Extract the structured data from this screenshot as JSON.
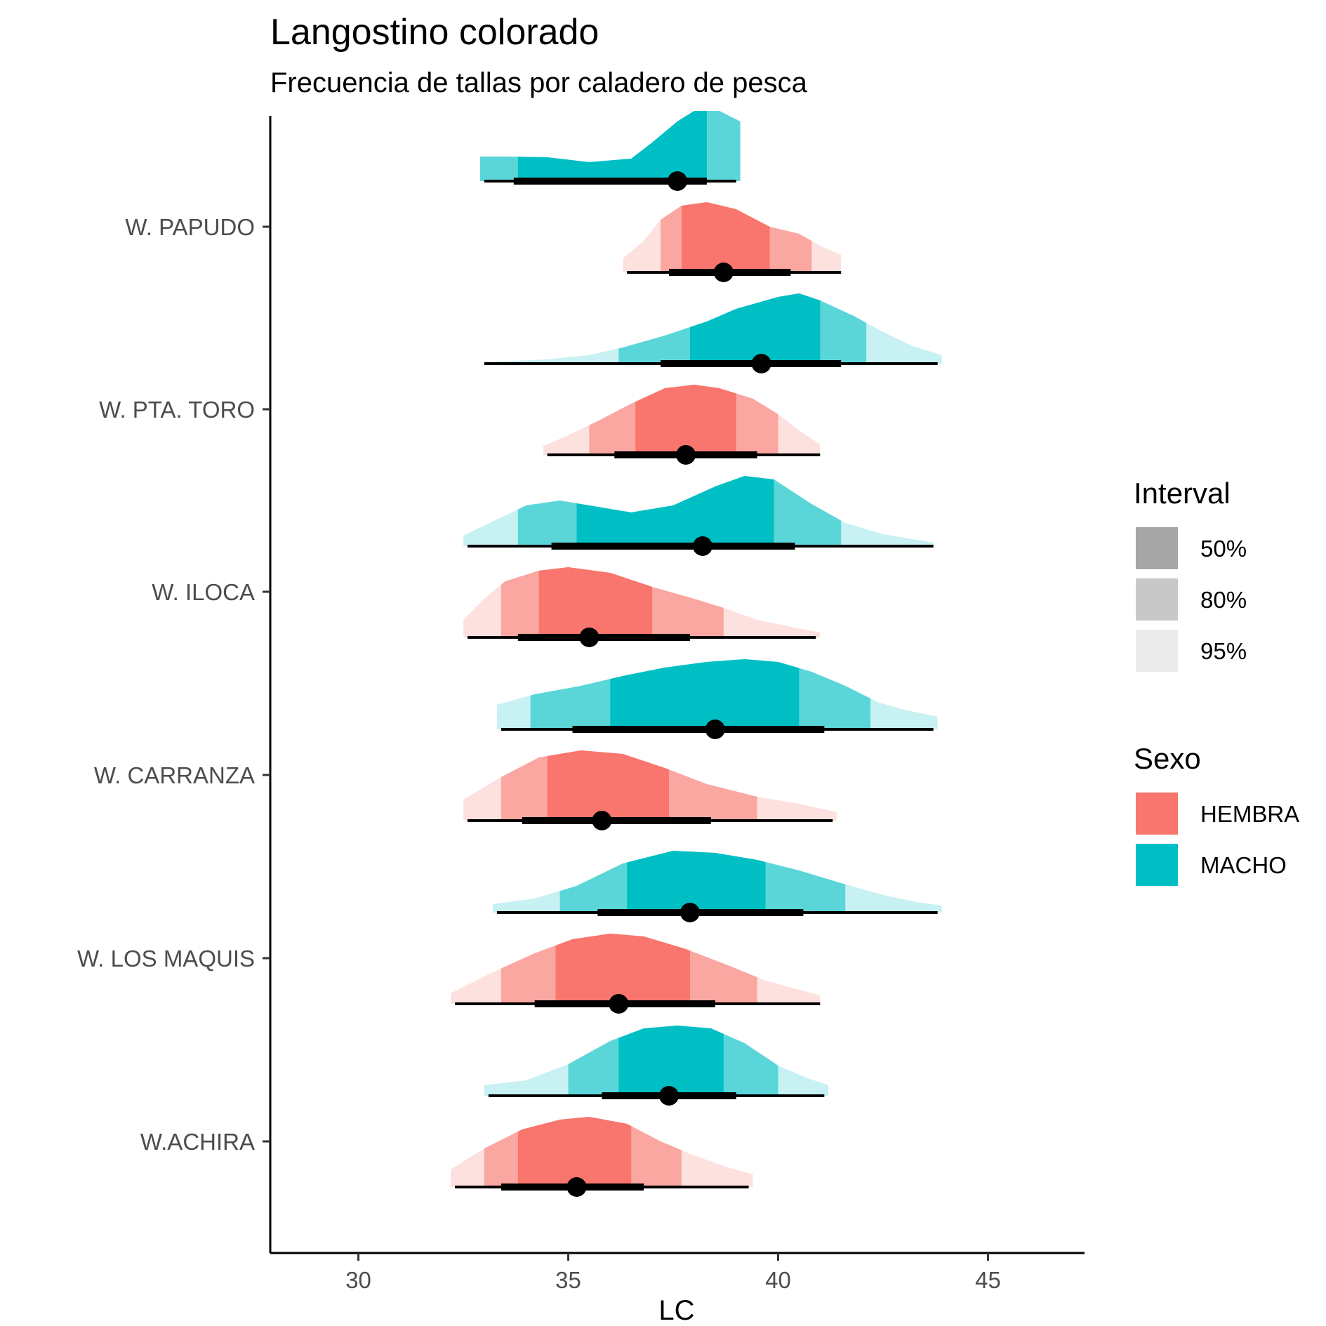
{
  "colors": {
    "HEMBRA": "#F8766D",
    "MACHO": "#00BFC4",
    "interval_50": "#A6A6A6",
    "interval_80": "#C8C8C8",
    "interval_95": "#EBEBEB"
  },
  "chart_data": {
    "type": "halfeye",
    "title": "Langostino colorado",
    "subtitle": "Frecuencia de tallas por caladero de pesca",
    "xlabel": "LC",
    "ylabel": "",
    "xlim": [
      27.9,
      47.3
    ],
    "xticks": [
      30,
      35,
      40,
      45
    ],
    "categories": [
      "W. PAPUDO",
      "W. PTA. TORO",
      "W. ILOCA",
      "W. CARRANZA",
      "W. LOS MAQUIS",
      "W.ACHIRA"
    ],
    "legend": {
      "interval_title": "Interval",
      "interval_levels": [
        "50%",
        "80%",
        "95%"
      ],
      "sexo_title": "Sexo",
      "sexo_levels": [
        "HEMBRA",
        "MACHO"
      ]
    },
    "series": [
      {
        "caladero": "W. PAPUDO",
        "sexo": "MACHO",
        "density": [
          [
            32.9,
            0.35
          ],
          [
            33.5,
            0.35
          ],
          [
            34.5,
            0.34
          ],
          [
            35.5,
            0.27
          ],
          [
            36.5,
            0.32
          ],
          [
            37.0,
            0.55
          ],
          [
            37.6,
            0.85
          ],
          [
            38.0,
            1.0
          ],
          [
            38.6,
            1.0
          ],
          [
            39.1,
            0.85
          ]
        ],
        "int95": [
          32.9,
          39.1
        ],
        "int80": [
          32.9,
          39.1
        ],
        "int50": [
          33.8,
          38.3
        ],
        "line95": [
          33.0,
          39.0
        ],
        "line66": [
          33.7,
          38.3
        ],
        "median": 37.6
      },
      {
        "caladero": "W. PAPUDO",
        "sexo": "HEMBRA",
        "density": [
          [
            36.3,
            0.2
          ],
          [
            36.8,
            0.45
          ],
          [
            37.2,
            0.75
          ],
          [
            37.7,
            0.95
          ],
          [
            38.3,
            1.0
          ],
          [
            39.0,
            0.9
          ],
          [
            39.8,
            0.65
          ],
          [
            40.5,
            0.55
          ],
          [
            41.0,
            0.38
          ],
          [
            41.5,
            0.25
          ]
        ],
        "int95": [
          36.3,
          41.5
        ],
        "int80": [
          37.2,
          40.8
        ],
        "int50": [
          37.7,
          39.8
        ],
        "line95": [
          36.4,
          41.5
        ],
        "line66": [
          37.4,
          40.3
        ],
        "median": 38.7
      },
      {
        "caladero": "W. PTA. TORO",
        "sexo": "MACHO",
        "density": [
          [
            33.0,
            0.02
          ],
          [
            34.5,
            0.06
          ],
          [
            35.5,
            0.12
          ],
          [
            36.3,
            0.23
          ],
          [
            37.3,
            0.4
          ],
          [
            38.3,
            0.6
          ],
          [
            39.0,
            0.78
          ],
          [
            40.0,
            0.95
          ],
          [
            40.5,
            1.0
          ],
          [
            41.0,
            0.9
          ],
          [
            41.8,
            0.68
          ],
          [
            42.5,
            0.45
          ],
          [
            43.2,
            0.25
          ],
          [
            43.9,
            0.12
          ]
        ],
        "int95": [
          33.0,
          43.9
        ],
        "int80": [
          36.2,
          42.1
        ],
        "int50": [
          37.9,
          41.0
        ],
        "line95": [
          33.0,
          43.8
        ],
        "line66": [
          37.2,
          41.5
        ],
        "median": 39.6
      },
      {
        "caladero": "W. PTA. TORO",
        "sexo": "HEMBRA",
        "density": [
          [
            34.4,
            0.12
          ],
          [
            35.0,
            0.28
          ],
          [
            35.7,
            0.48
          ],
          [
            36.5,
            0.73
          ],
          [
            37.3,
            0.95
          ],
          [
            38.0,
            1.0
          ],
          [
            38.6,
            0.95
          ],
          [
            39.4,
            0.8
          ],
          [
            40.0,
            0.58
          ],
          [
            40.5,
            0.35
          ],
          [
            41.0,
            0.15
          ]
        ],
        "int95": [
          34.4,
          41.0
        ],
        "int80": [
          35.5,
          40.0
        ],
        "int50": [
          36.6,
          39.0
        ],
        "line95": [
          34.5,
          41.0
        ],
        "line66": [
          36.1,
          39.5
        ],
        "median": 37.8
      },
      {
        "caladero": "W. ILOCA",
        "sexo": "MACHO",
        "density": [
          [
            32.5,
            0.15
          ],
          [
            33.3,
            0.38
          ],
          [
            34.0,
            0.58
          ],
          [
            34.8,
            0.65
          ],
          [
            35.5,
            0.58
          ],
          [
            36.5,
            0.48
          ],
          [
            37.5,
            0.58
          ],
          [
            38.5,
            0.85
          ],
          [
            39.2,
            1.0
          ],
          [
            39.9,
            0.95
          ],
          [
            40.8,
            0.6
          ],
          [
            41.6,
            0.33
          ],
          [
            42.5,
            0.17
          ],
          [
            43.7,
            0.05
          ]
        ],
        "int95": [
          32.5,
          43.7
        ],
        "int80": [
          33.8,
          41.5
        ],
        "int50": [
          35.2,
          39.9
        ],
        "line95": [
          32.6,
          43.7
        ],
        "line66": [
          34.6,
          40.4
        ],
        "median": 38.2
      },
      {
        "caladero": "W. ILOCA",
        "sexo": "HEMBRA",
        "density": [
          [
            32.5,
            0.25
          ],
          [
            33.0,
            0.55
          ],
          [
            33.5,
            0.8
          ],
          [
            34.3,
            0.95
          ],
          [
            35.0,
            1.0
          ],
          [
            36.0,
            0.92
          ],
          [
            37.0,
            0.72
          ],
          [
            38.0,
            0.55
          ],
          [
            38.7,
            0.42
          ],
          [
            39.5,
            0.25
          ],
          [
            40.3,
            0.15
          ],
          [
            41.0,
            0.07
          ]
        ],
        "int95": [
          32.5,
          41.0
        ],
        "int80": [
          33.4,
          38.7
        ],
        "int50": [
          34.3,
          37.0
        ],
        "line95": [
          32.6,
          40.9
        ],
        "line66": [
          33.8,
          37.9
        ],
        "median": 35.5
      },
      {
        "caladero": "W. CARRANZA",
        "sexo": "MACHO",
        "density": [
          [
            33.3,
            0.35
          ],
          [
            34.2,
            0.5
          ],
          [
            35.3,
            0.62
          ],
          [
            36.3,
            0.76
          ],
          [
            37.3,
            0.88
          ],
          [
            38.3,
            0.96
          ],
          [
            39.2,
            1.0
          ],
          [
            40.0,
            0.96
          ],
          [
            40.8,
            0.82
          ],
          [
            41.6,
            0.62
          ],
          [
            42.4,
            0.38
          ],
          [
            43.0,
            0.28
          ],
          [
            43.8,
            0.18
          ]
        ],
        "int95": [
          33.3,
          43.8
        ],
        "int80": [
          34.1,
          42.2
        ],
        "int50": [
          36.0,
          40.5
        ],
        "line95": [
          33.4,
          43.7
        ],
        "line66": [
          35.1,
          41.1
        ],
        "median": 38.5
      },
      {
        "caladero": "W. CARRANZA",
        "sexo": "HEMBRA",
        "density": [
          [
            32.5,
            0.3
          ],
          [
            33.4,
            0.62
          ],
          [
            34.3,
            0.9
          ],
          [
            35.3,
            1.0
          ],
          [
            36.3,
            0.95
          ],
          [
            37.3,
            0.75
          ],
          [
            38.3,
            0.52
          ],
          [
            39.5,
            0.34
          ],
          [
            40.5,
            0.24
          ],
          [
            41.4,
            0.12
          ]
        ],
        "int95": [
          32.5,
          41.4
        ],
        "int80": [
          33.4,
          39.5
        ],
        "int50": [
          34.5,
          37.4
        ],
        "line95": [
          32.6,
          41.3
        ],
        "line66": [
          33.9,
          38.4
        ],
        "median": 35.8
      },
      {
        "caladero": "W. LOS MAQUIS",
        "sexo": "MACHO",
        "density": [
          [
            33.2,
            0.12
          ],
          [
            34.2,
            0.2
          ],
          [
            35.2,
            0.38
          ],
          [
            36.3,
            0.7
          ],
          [
            37.5,
            0.88
          ],
          [
            38.5,
            0.85
          ],
          [
            39.5,
            0.75
          ],
          [
            40.5,
            0.6
          ],
          [
            41.5,
            0.42
          ],
          [
            42.5,
            0.25
          ],
          [
            43.3,
            0.15
          ],
          [
            43.9,
            0.1
          ]
        ],
        "int95": [
          33.2,
          43.9
        ],
        "int80": [
          34.8,
          41.6
        ],
        "int50": [
          36.4,
          39.7
        ],
        "line95": [
          33.3,
          43.8
        ],
        "line66": [
          35.7,
          40.6
        ],
        "median": 37.9
      },
      {
        "caladero": "W. LOS MAQUIS",
        "sexo": "HEMBRA",
        "density": [
          [
            32.2,
            0.15
          ],
          [
            33.2,
            0.45
          ],
          [
            34.2,
            0.72
          ],
          [
            35.1,
            0.92
          ],
          [
            36.0,
            1.0
          ],
          [
            36.8,
            0.96
          ],
          [
            37.8,
            0.78
          ],
          [
            38.8,
            0.55
          ],
          [
            39.7,
            0.33
          ],
          [
            40.5,
            0.2
          ],
          [
            41.0,
            0.12
          ]
        ],
        "int95": [
          32.2,
          41.0
        ],
        "int80": [
          33.4,
          39.5
        ],
        "int50": [
          34.7,
          37.9
        ],
        "line95": [
          32.3,
          41.0
        ],
        "line66": [
          34.2,
          38.5
        ],
        "median": 36.2
      },
      {
        "caladero": "W.ACHIRA",
        "sexo": "MACHO",
        "density": [
          [
            33.0,
            0.15
          ],
          [
            34.0,
            0.22
          ],
          [
            35.0,
            0.45
          ],
          [
            36.0,
            0.78
          ],
          [
            36.8,
            0.96
          ],
          [
            37.6,
            1.0
          ],
          [
            38.4,
            0.96
          ],
          [
            39.2,
            0.75
          ],
          [
            40.0,
            0.43
          ],
          [
            40.7,
            0.25
          ],
          [
            41.2,
            0.15
          ]
        ],
        "int95": [
          33.0,
          41.2
        ],
        "int80": [
          35.0,
          40.0
        ],
        "int50": [
          36.2,
          38.7
        ],
        "line95": [
          33.1,
          41.1
        ],
        "line66": [
          35.8,
          39.0
        ],
        "median": 37.4
      },
      {
        "caladero": "W.ACHIRA",
        "sexo": "HEMBRA",
        "density": [
          [
            32.2,
            0.25
          ],
          [
            33.0,
            0.55
          ],
          [
            33.9,
            0.82
          ],
          [
            34.8,
            0.96
          ],
          [
            35.5,
            1.0
          ],
          [
            36.4,
            0.9
          ],
          [
            37.2,
            0.65
          ],
          [
            38.0,
            0.45
          ],
          [
            38.8,
            0.28
          ],
          [
            39.4,
            0.18
          ]
        ],
        "int95": [
          32.2,
          39.4
        ],
        "int80": [
          33.0,
          37.7
        ],
        "int50": [
          33.8,
          36.5
        ],
        "line95": [
          32.3,
          39.3
        ],
        "line66": [
          33.4,
          36.8
        ],
        "median": 35.2
      }
    ]
  }
}
